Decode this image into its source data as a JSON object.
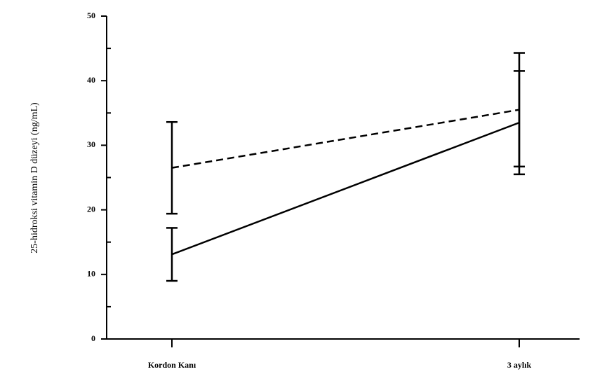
{
  "chart_data": {
    "type": "line",
    "y_label": "25-hidroksi vitamin D düzeyi (ng/mL)",
    "categories": [
      "Kordon Kanı",
      "3 aylık"
    ],
    "series": [
      {
        "color": "#000000",
        "dash": false,
        "values": [
          13.1,
          33.5
        ],
        "errors": [
          4.1,
          8
        ]
      },
      {
        "color": "#000000",
        "dash": true,
        "values": [
          26.5,
          35.5
        ],
        "errors": [
          7.1,
          8.8
        ]
      }
    ],
    "ylim": [
      0,
      50
    ],
    "yticks": [
      0,
      10,
      20,
      30,
      40,
      50
    ],
    "minor_yticks": [
      5,
      15,
      25,
      35,
      45
    ]
  }
}
